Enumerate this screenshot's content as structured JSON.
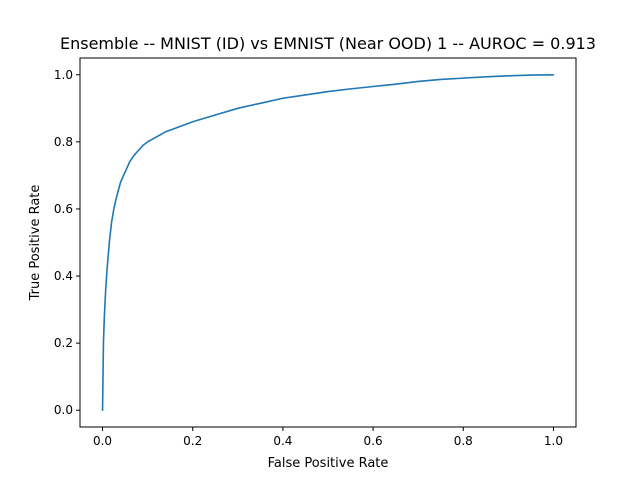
{
  "chart_data": {
    "type": "line",
    "title": "Ensemble -- MNIST (ID) vs EMNIST (Near OOD) 1 -- AUROC = 0.913",
    "xlabel": "False Positive Rate",
    "ylabel": "True Positive Rate",
    "xlim": [
      -0.05,
      1.05
    ],
    "ylim": [
      -0.05,
      1.05
    ],
    "xticks": [
      0.0,
      0.2,
      0.4,
      0.6,
      0.8,
      1.0
    ],
    "xtick_labels": [
      "0.0",
      "0.2",
      "0.4",
      "0.6",
      "0.8",
      "1.0"
    ],
    "yticks": [
      0.0,
      0.2,
      0.4,
      0.6,
      0.8,
      1.0
    ],
    "ytick_labels": [
      "0.0",
      "0.2",
      "0.4",
      "0.6",
      "0.8",
      "1.0"
    ],
    "grid": false,
    "line_color": "#1f77b4",
    "series": [
      {
        "x": [
          0.0,
          0.002,
          0.004,
          0.007,
          0.01,
          0.015,
          0.02,
          0.025,
          0.03,
          0.04,
          0.05,
          0.06,
          0.07,
          0.08,
          0.09,
          0.1,
          0.12,
          0.14,
          0.16,
          0.18,
          0.2,
          0.25,
          0.3,
          0.35,
          0.4,
          0.45,
          0.5,
          0.55,
          0.6,
          0.65,
          0.7,
          0.75,
          0.8,
          0.85,
          0.9,
          0.95,
          1.0
        ],
        "y": [
          0.0,
          0.2,
          0.28,
          0.36,
          0.42,
          0.5,
          0.56,
          0.6,
          0.63,
          0.68,
          0.71,
          0.74,
          0.76,
          0.775,
          0.79,
          0.8,
          0.815,
          0.83,
          0.84,
          0.85,
          0.86,
          0.88,
          0.9,
          0.915,
          0.93,
          0.94,
          0.95,
          0.958,
          0.965,
          0.972,
          0.98,
          0.986,
          0.99,
          0.994,
          0.997,
          0.999,
          1.0
        ]
      }
    ]
  }
}
